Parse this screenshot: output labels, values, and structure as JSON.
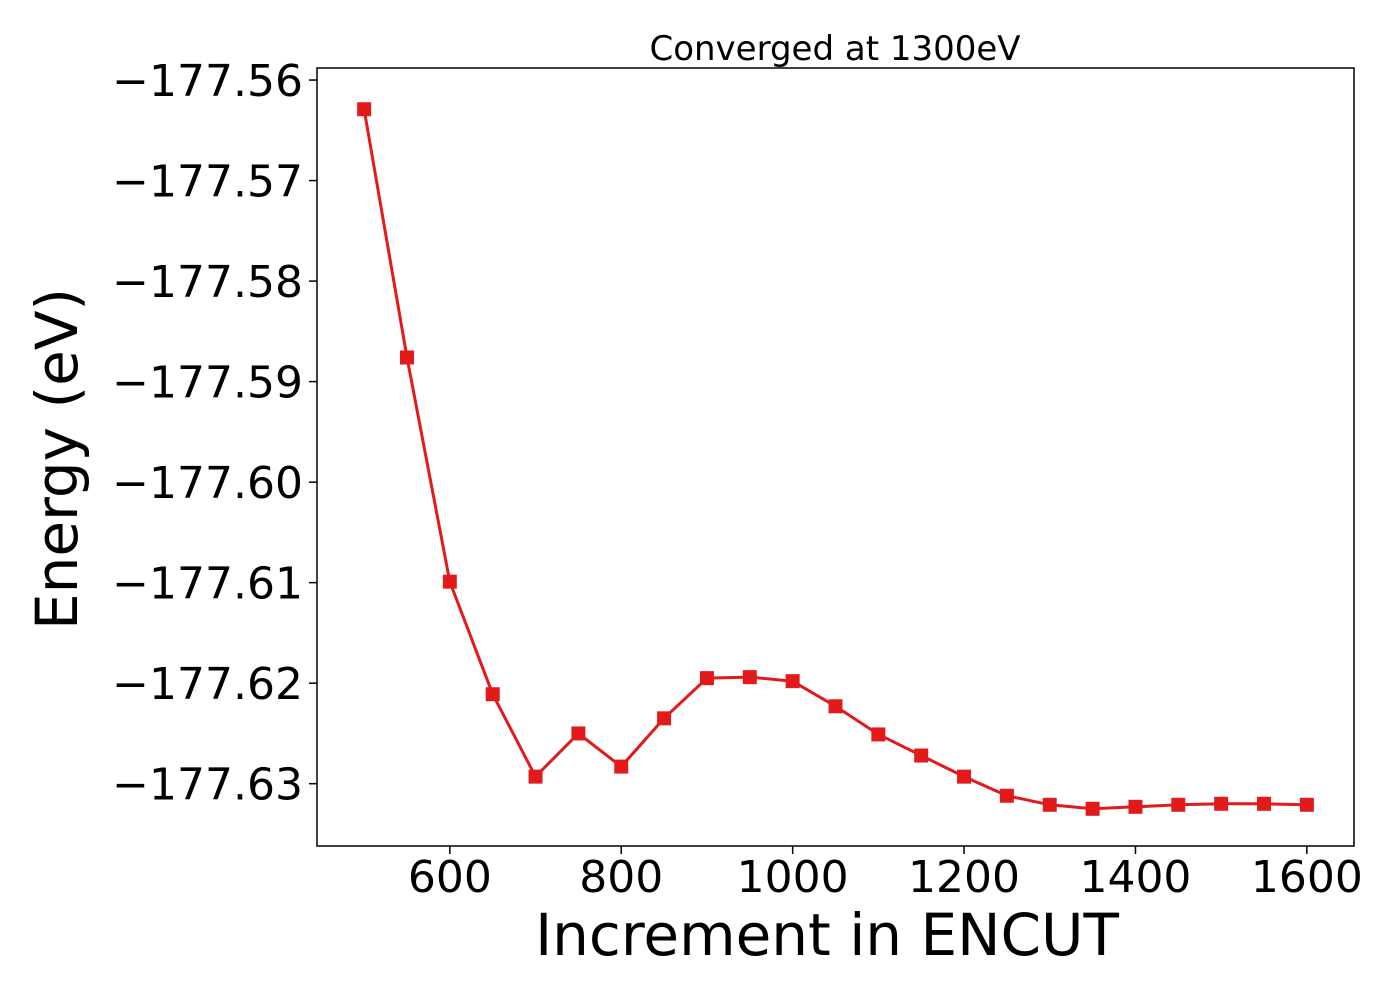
{
  "chart_data": {
    "type": "line",
    "title": "Converged at 1300eV",
    "xlabel": "Increment in ENCUT",
    "ylabel": "Energy (eV)",
    "xlim": [
      445,
      1655
    ],
    "ylim": [
      -177.6362,
      -177.5588
    ],
    "x_ticks": [
      600,
      800,
      1000,
      1200,
      1400,
      1600
    ],
    "x_tick_labels": [
      "600",
      "800",
      "1000",
      "1200",
      "1400",
      "1600"
    ],
    "y_ticks": [
      -177.56,
      -177.57,
      -177.58,
      -177.59,
      -177.6,
      -177.61,
      -177.62,
      -177.63
    ],
    "y_tick_labels": [
      "−177.56",
      "−177.57",
      "−177.58",
      "−177.59",
      "−177.60",
      "−177.61",
      "−177.62",
      "−177.63"
    ],
    "grid": false,
    "series": [
      {
        "name": "Energy",
        "color": "#e31a1c",
        "marker": "square",
        "x": [
          500,
          550,
          600,
          650,
          700,
          750,
          800,
          850,
          900,
          950,
          1000,
          1050,
          1100,
          1150,
          1200,
          1250,
          1300,
          1350,
          1400,
          1450,
          1500,
          1550,
          1600
        ],
        "y": [
          -177.5629,
          -177.5876,
          -177.6099,
          -177.6211,
          -177.6293,
          -177.625,
          -177.6283,
          -177.6235,
          -177.6195,
          -177.6194,
          -177.6198,
          -177.6223,
          -177.6251,
          -177.6272,
          -177.6293,
          -177.6312,
          -177.6321,
          -177.6325,
          -177.6323,
          -177.6321,
          -177.632,
          -177.632,
          -177.6321
        ]
      }
    ]
  }
}
